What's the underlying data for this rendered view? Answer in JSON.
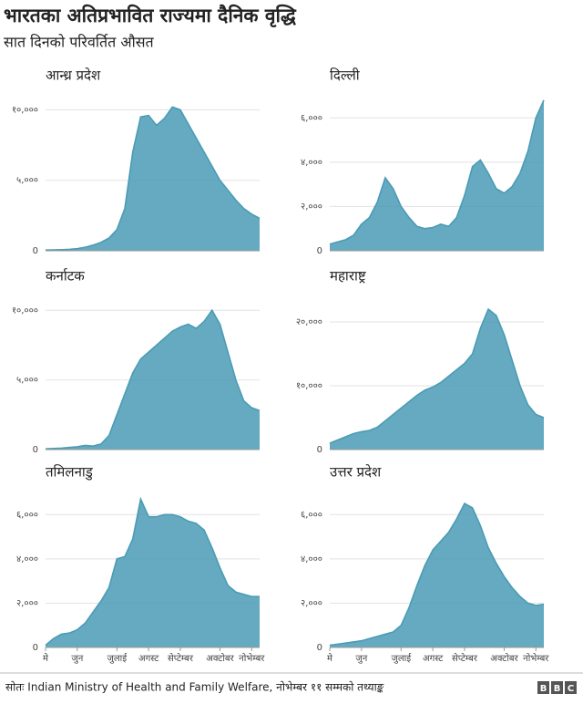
{
  "title": "भारतका अतिप्रभावित राज्यमा दैनिक वृद्धि",
  "subtitle": "सात दिनको परिवर्तित औसत",
  "source": "सोतः  Indian Ministry of Health and Family Welfare, नोभेम्बर ११ सम्मको तथ्याङ्क",
  "logo": [
    "B",
    "B",
    "C"
  ],
  "chart_data": [
    {
      "type": "area",
      "title": "आन्ध्र प्रदेश",
      "color": "#4a9bb5",
      "grid": true,
      "ylim": [
        0,
        11000
      ],
      "yticks": [
        0,
        {
          "value": 5000,
          "label": "५,०००"
        },
        {
          "value": 10000,
          "label": "१०,०००"
        }
      ],
      "values": [
        50,
        60,
        80,
        100,
        150,
        250,
        400,
        600,
        900,
        1500,
        3000,
        7000,
        9500,
        9600,
        8900,
        9400,
        10200,
        10000,
        9000,
        8000,
        7000,
        6000,
        5000,
        4300,
        3600,
        3000,
        2600,
        2300
      ]
    },
    {
      "type": "area",
      "title": "दिल्ली",
      "color": "#4a9bb5",
      "grid": true,
      "ylim": [
        0,
        7000
      ],
      "yticks": [
        0,
        {
          "value": 2000,
          "label": "२,०००"
        },
        {
          "value": 4000,
          "label": "४,०००"
        },
        {
          "value": 6000,
          "label": "६,०००"
        }
      ],
      "values": [
        300,
        400,
        500,
        700,
        1200,
        1500,
        2200,
        3300,
        2800,
        2000,
        1500,
        1100,
        1000,
        1050,
        1200,
        1100,
        1500,
        2500,
        3800,
        4100,
        3500,
        2800,
        2600,
        2900,
        3500,
        4500,
        6000,
        6800
      ]
    },
    {
      "type": "area",
      "title": "कर्नाटक",
      "color": "#4a9bb5",
      "grid": true,
      "ylim": [
        0,
        11000
      ],
      "yticks": [
        0,
        {
          "value": 5000,
          "label": "५,०००"
        },
        {
          "value": 10000,
          "label": "१०,०००"
        }
      ],
      "values": [
        50,
        80,
        100,
        150,
        200,
        300,
        250,
        400,
        1000,
        2500,
        4000,
        5500,
        6500,
        7000,
        7500,
        8000,
        8500,
        8800,
        9000,
        8700,
        9200,
        10000,
        9000,
        7000,
        5000,
        3500,
        3000,
        2800
      ]
    },
    {
      "type": "area",
      "title": "महाराष्ट्र",
      "color": "#4a9bb5",
      "grid": true,
      "ylim": [
        0,
        24000
      ],
      "yticks": [
        0,
        {
          "value": 10000,
          "label": "१०,०००"
        },
        {
          "value": 20000,
          "label": "२०,०००"
        }
      ],
      "values": [
        1000,
        1500,
        2000,
        2500,
        2800,
        3000,
        3500,
        4500,
        5500,
        6500,
        7500,
        8500,
        9300,
        9800,
        10500,
        11500,
        12500,
        13500,
        15000,
        19000,
        22000,
        21000,
        18000,
        14000,
        10000,
        7000,
        5500,
        5000
      ]
    },
    {
      "type": "area",
      "title": "तमिलनाडु",
      "color": "#4a9bb5",
      "grid": true,
      "ylim": [
        0,
        7000
      ],
      "yticks": [
        0,
        {
          "value": 2000,
          "label": "२,०००"
        },
        {
          "value": 4000,
          "label": "४,०००"
        },
        {
          "value": 6000,
          "label": "६,०००"
        }
      ],
      "categories": [
        "मे",
        null,
        null,
        null,
        "जुन",
        null,
        null,
        null,
        null,
        "जुलाई",
        null,
        null,
        null,
        "अगस्ट",
        null,
        null,
        null,
        "सेप्टेम्बर",
        null,
        null,
        null,
        null,
        "अक्टोबर",
        null,
        null,
        null,
        "नोभेम्बर",
        null
      ],
      "values": [
        100,
        400,
        600,
        650,
        800,
        1100,
        1600,
        2100,
        2700,
        4000,
        4100,
        4900,
        6700,
        5900,
        5900,
        6000,
        6000,
        5900,
        5700,
        5600,
        5300,
        4500,
        3600,
        2800,
        2500,
        2400,
        2300,
        2300
      ]
    },
    {
      "type": "area",
      "title": "उत्तर प्रदेश",
      "color": "#4a9bb5",
      "grid": true,
      "ylim": [
        0,
        7000
      ],
      "yticks": [
        0,
        {
          "value": 2000,
          "label": "२,०००"
        },
        {
          "value": 4000,
          "label": "४,०००"
        },
        {
          "value": 6000,
          "label": "६,०००"
        }
      ],
      "categories": [
        "मे",
        null,
        null,
        null,
        "जुन",
        null,
        null,
        null,
        null,
        "जुलाई",
        null,
        null,
        null,
        "अगस्ट",
        null,
        null,
        null,
        "सेप्टेम्बर",
        null,
        null,
        null,
        null,
        "अक्टोबर",
        null,
        null,
        null,
        "नोभेम्बर",
        null
      ],
      "values": [
        100,
        150,
        200,
        250,
        300,
        400,
        500,
        600,
        700,
        1000,
        1800,
        2800,
        3700,
        4400,
        4800,
        5200,
        5800,
        6500,
        6300,
        5500,
        4500,
        3800,
        3200,
        2700,
        2300,
        2000,
        1900,
        1950
      ]
    }
  ]
}
